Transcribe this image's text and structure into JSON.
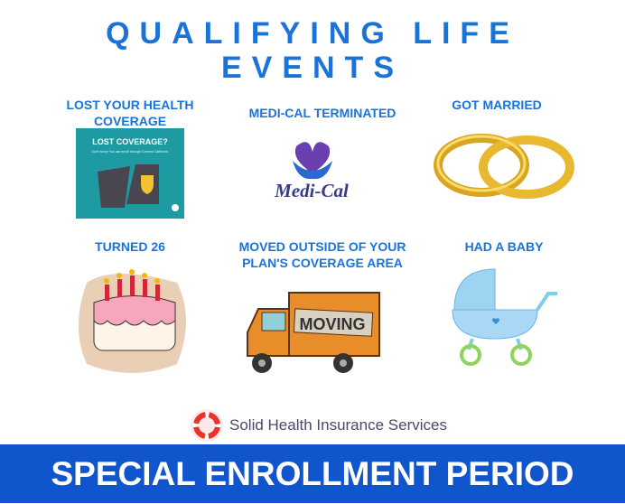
{
  "title_line1": "QUALIFYING LIFE",
  "title_line2": "EVENTS",
  "events": [
    {
      "label": "LOST YOUR HEALTH COVERAGE",
      "image_text": "LOST COVERAGE?",
      "image_subtext": "Don't worry! You can enroll through Covered California."
    },
    {
      "label": "MEDI-CAL TERMINATED",
      "image_text": "Medi-Cal"
    },
    {
      "label": "GOT MARRIED"
    },
    {
      "label": "TURNED 26"
    },
    {
      "label": "MOVED OUTSIDE OF YOUR PLAN'S COVERAGE AREA",
      "image_text": "MOVING"
    },
    {
      "label": "HAD A BABY"
    }
  ],
  "brand": "Solid Health Insurance Services",
  "banner": "SPECIAL ENROLLMENT PERIOD",
  "colors": {
    "accent": "#1a73d8",
    "banner": "#1155cc"
  }
}
